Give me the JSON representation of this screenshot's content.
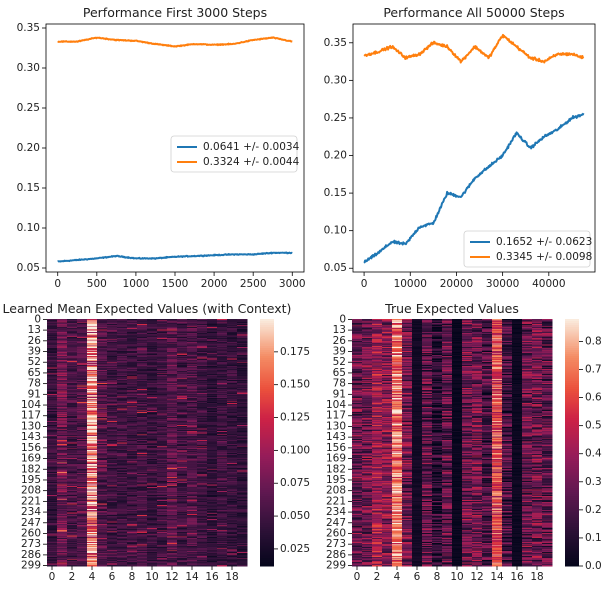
{
  "chart_data": [
    {
      "type": "line",
      "title": "Performance First 3000 Steps",
      "xlabel": "",
      "ylabel": "",
      "xlim": [
        -150,
        3150
      ],
      "ylim": [
        0.045,
        0.355
      ],
      "xticks": [
        0,
        500,
        1000,
        1500,
        2000,
        2500,
        3000
      ],
      "yticks": [
        0.05,
        0.1,
        0.15,
        0.2,
        0.25,
        0.3,
        0.35
      ],
      "legend": "center-right",
      "grid": false,
      "series": [
        {
          "name": "0.0641 +/- 0.0034",
          "color": "#1f77b4",
          "x": [
            0,
            250,
            500,
            750,
            1000,
            1250,
            1500,
            1750,
            2000,
            2250,
            2500,
            2750,
            3000
          ],
          "y": [
            0.058,
            0.06,
            0.062,
            0.065,
            0.062,
            0.062,
            0.064,
            0.065,
            0.066,
            0.067,
            0.067,
            0.069,
            0.069
          ]
        },
        {
          "name": "0.3324 +/- 0.0044",
          "color": "#ff7f0e",
          "x": [
            0,
            250,
            500,
            750,
            1000,
            1250,
            1500,
            1750,
            2000,
            2250,
            2500,
            2750,
            3000
          ],
          "y": [
            0.333,
            0.333,
            0.338,
            0.335,
            0.334,
            0.33,
            0.327,
            0.33,
            0.329,
            0.33,
            0.335,
            0.338,
            0.333
          ]
        }
      ]
    },
    {
      "type": "line",
      "title": "Performance All 50000 Steps",
      "xlabel": "",
      "ylabel": "",
      "xlim": [
        -2400,
        50000
      ],
      "ylim": [
        0.045,
        0.375
      ],
      "xticks": [
        0,
        10000,
        20000,
        30000,
        40000
      ],
      "yticks": [
        0.05,
        0.1,
        0.15,
        0.2,
        0.25,
        0.3,
        0.35
      ],
      "legend": "lower-right",
      "grid": false,
      "series": [
        {
          "name": "0.1652 +/- 0.0623",
          "color": "#1f77b4",
          "x": [
            0,
            3000,
            6000,
            9000,
            12000,
            15000,
            18000,
            21000,
            24000,
            27000,
            30000,
            33000,
            36000,
            39000,
            42000,
            45000,
            47500
          ],
          "y": [
            0.058,
            0.07,
            0.085,
            0.082,
            0.105,
            0.11,
            0.15,
            0.145,
            0.17,
            0.185,
            0.2,
            0.23,
            0.21,
            0.225,
            0.235,
            0.25,
            0.255
          ]
        },
        {
          "name": "0.3345 +/- 0.0098",
          "color": "#ff7f0e",
          "x": [
            0,
            3000,
            6000,
            9000,
            12000,
            15000,
            18000,
            21000,
            24000,
            27000,
            30000,
            33000,
            36000,
            39000,
            42000,
            45000,
            47500
          ],
          "y": [
            0.333,
            0.338,
            0.345,
            0.33,
            0.335,
            0.35,
            0.345,
            0.325,
            0.345,
            0.33,
            0.36,
            0.345,
            0.33,
            0.325,
            0.335,
            0.335,
            0.33
          ]
        }
      ]
    },
    {
      "type": "heatmap",
      "title": "Learned Mean Expected Values (with Context)",
      "xlabel": "",
      "ylabel": "",
      "n_rows": 300,
      "n_cols": 20,
      "xticks": [
        0,
        2,
        4,
        6,
        8,
        10,
        12,
        14,
        16,
        18
      ],
      "yticks": [
        0,
        13,
        26,
        39,
        52,
        65,
        78,
        91,
        104,
        117,
        130,
        143,
        156,
        169,
        182,
        195,
        208,
        221,
        234,
        247,
        260,
        273,
        286,
        299
      ],
      "colormap": "rocket",
      "colorbar": {
        "min": 0.012,
        "max": 0.2,
        "ticks": [
          "0.025",
          "0.050",
          "0.075",
          "0.100",
          "0.125",
          "0.150",
          "0.175"
        ]
      },
      "column_means": [
        0.045,
        0.075,
        0.055,
        0.06,
        0.17,
        0.06,
        0.05,
        0.05,
        0.05,
        0.052,
        0.045,
        0.05,
        0.065,
        0.05,
        0.06,
        0.05,
        0.04,
        0.048,
        0.045,
        0.04
      ]
    },
    {
      "type": "heatmap",
      "title": "True Expected Values",
      "xlabel": "",
      "ylabel": "",
      "n_rows": 300,
      "n_cols": 20,
      "xticks": [
        0,
        2,
        4,
        6,
        8,
        10,
        12,
        14,
        16,
        18
      ],
      "yticks": [
        0,
        13,
        26,
        39,
        52,
        65,
        78,
        91,
        104,
        117,
        130,
        143,
        156,
        169,
        182,
        195,
        208,
        221,
        234,
        247,
        260,
        273,
        286,
        299
      ],
      "colormap": "rocket",
      "colorbar": {
        "min": 0.0,
        "max": 0.88,
        "ticks": [
          "0.0",
          "0.1",
          "0.2",
          "0.3",
          "0.4",
          "0.5",
          "0.6",
          "0.7",
          "0.8"
        ]
      },
      "column_means": [
        0.28,
        0.3,
        0.4,
        0.35,
        0.7,
        0.3,
        0.05,
        0.25,
        0.1,
        0.25,
        0.02,
        0.3,
        0.3,
        0.2,
        0.6,
        0.2,
        0.03,
        0.28,
        0.3,
        0.25
      ]
    }
  ]
}
